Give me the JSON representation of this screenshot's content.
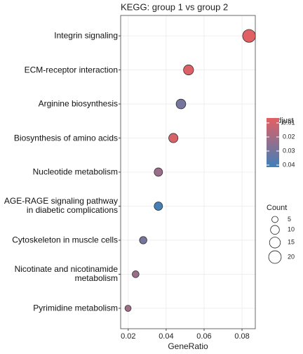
{
  "chart_data": {
    "type": "scatter",
    "title": "KEGG: group 1 vs group 2",
    "x_label": "GeneRatio",
    "categories": [
      "Integrin signaling",
      "ECM-receptor interaction",
      "Arginine biosynthesis",
      "Biosynthesis of amino acids",
      "Nucleotide metabolism",
      "AGE-RAGE signaling pathway\nin diabetic complications",
      "Cytoskeleton in muscle cells",
      "Nicotinate and nicotinamide\nmetabolism",
      "Pyrimidine metabolism"
    ],
    "values": [
      0.0837,
      0.0518,
      0.0478,
      0.0438,
      0.0359,
      0.0359,
      0.0279,
      0.0239,
      0.0199
    ],
    "counts": [
      21,
      13,
      12,
      11,
      9,
      9,
      7,
      6,
      5
    ],
    "p_adjust": [
      0.007,
      0.008,
      0.03,
      0.009,
      0.022,
      0.04,
      0.03,
      0.022,
      0.021
    ],
    "xlim": [
      0.016,
      0.087
    ],
    "xticks": [
      0.02,
      0.04,
      0.06,
      0.08
    ],
    "grid": true,
    "color_legend": {
      "title": "p.adjust",
      "lim": [
        0.0065,
        0.0415
      ],
      "ticks": [
        0.01,
        0.02,
        0.03,
        0.04
      ],
      "low_color": "#e36062",
      "high_color": "#3f7fba"
    },
    "size_legend": {
      "title": "Count",
      "ticks": [
        5,
        10,
        15,
        20
      ]
    }
  }
}
